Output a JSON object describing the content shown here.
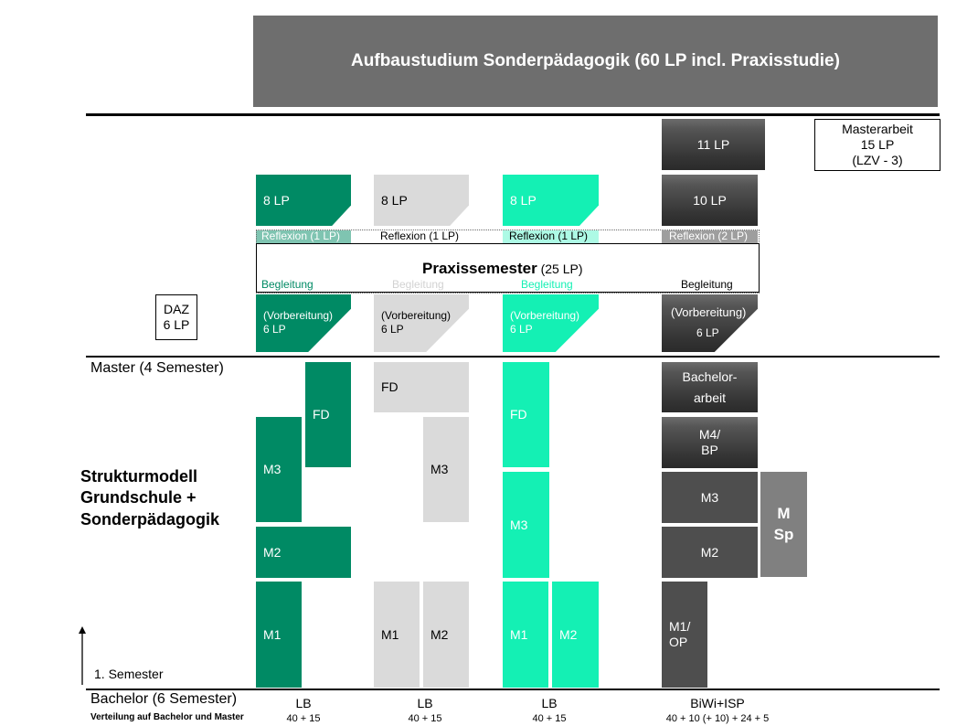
{
  "header": {
    "title": "Aufbaustudium Sonderpädagogik (60 LP incl. Praxisstudie)"
  },
  "masterarbeit": {
    "line1": "Masterarbeit",
    "line2": "15 LP",
    "line3": "(LZV - 3)"
  },
  "daz": {
    "line1": "DAZ",
    "line2": "6 LP"
  },
  "columns": [
    {
      "lp": "8 LP",
      "reflexion": "Reflexion  (1 LP)",
      "begleitung": "Begleitung",
      "vorbereitung": "(Vorbereitung)",
      "vorbereitung_lp": "6 LP",
      "fd": "FD",
      "m3": "M3",
      "m2": "M2",
      "m1": "M1",
      "footer": "LB",
      "footer_split": "40 + 15"
    },
    {
      "lp": "8 LP",
      "reflexion": "Reflexion  (1 LP)",
      "begleitung": "Begleitung",
      "vorbereitung": "(Vorbereitung)",
      "vorbereitung_lp": "6 LP",
      "fd": "FD",
      "m3": "M3",
      "m1": "M1",
      "m2": "M2",
      "footer": "LB",
      "footer_split": "40 + 15"
    },
    {
      "lp": "8 LP",
      "reflexion": "Reflexion  (1 LP)",
      "begleitung": "Begleitung",
      "vorbereitung": "(Vorbereitung)",
      "vorbereitung_lp": "6 LP",
      "fd": "FD",
      "m3": "M3",
      "m1": "M1",
      "m2": "M2",
      "footer": "LB",
      "footer_split": "40 + 15"
    },
    {
      "lp_top": "11 LP",
      "lp": "10 LP",
      "reflexion": "Reflexion  (2 LP)",
      "begleitung": "Begleitung",
      "vorbereitung": "(Vorbereitung)",
      "vorbereitung_lp": "6 LP",
      "bachelor_line1": "Bachelor-",
      "bachelor_line2": "arbeit",
      "m4_line1": "M4/",
      "m4_line2": "BP",
      "m3": "M3",
      "m2": "M2",
      "m1_line1": "M1/",
      "m1_line2": "OP",
      "footer": "BiWi+ISP",
      "footer_split": "40 + 10 (+ 10) + 24 + 5"
    }
  ],
  "msp": {
    "line1": "M",
    "line2": "Sp"
  },
  "praxissemester": {
    "title": "Praxissemester",
    "lp": " (25 LP)"
  },
  "labels": {
    "master": "Master  (4 Semester)",
    "bachelor": "Bachelor (6 Semester)",
    "semester1": "1. Semester",
    "verteilung": "Verteilung auf Bachelor und Master",
    "struktur_line1": "Strukturmodell",
    "struktur_line2": "Grundschule +",
    "struktur_line3": "Sonderpädagogik"
  },
  "colors": {
    "dark_green": "#008a64",
    "light_gray": "#dadada",
    "mint": "#14f0b4",
    "dark_gray": "#4e4e4e",
    "header_gray": "#6e6e6e"
  }
}
